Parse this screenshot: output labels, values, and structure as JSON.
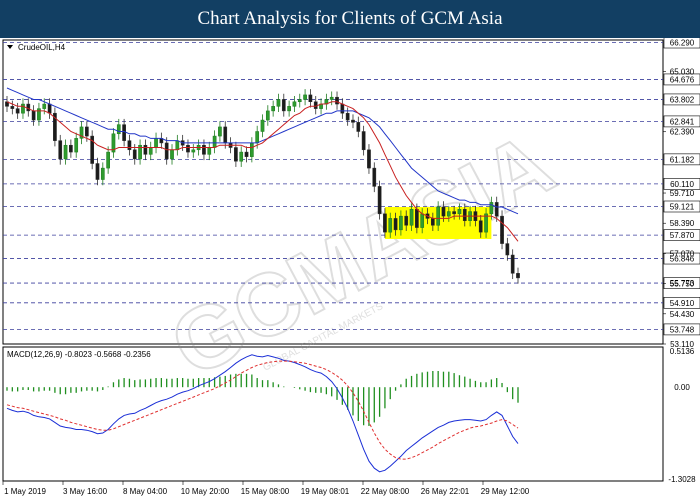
{
  "banner": {
    "title": "Chart Analysis for Clients of GCM Asia"
  },
  "watermark": {
    "text": "GCMASIA",
    "subtext": "GLOBAL CAPITAL MARKETS"
  },
  "chart_data": {
    "type": "candlestick",
    "symbol_label": "CrudeOIL,H4",
    "price_axis": {
      "range": [
        53.11,
        66.4
      ],
      "tick_labels": [
        "65.030",
        "62.390",
        "59.710",
        "58.390",
        "57.070",
        "55.750",
        "54.430",
        "53.110"
      ],
      "key_levels": [
        {
          "value": "66.290",
          "box": true
        },
        {
          "value": "64.676",
          "box": true
        },
        {
          "value": "63.802",
          "box": true
        },
        {
          "value": "62.841",
          "box": true
        },
        {
          "value": "61.182",
          "box": true
        },
        {
          "value": "60.110",
          "box": true
        },
        {
          "value": "59.121",
          "box": true
        },
        {
          "value": "57.870",
          "box": true
        },
        {
          "value": "56.846",
          "box": true
        },
        {
          "value": "55.773",
          "box": true,
          "highlight": true
        },
        {
          "value": "54.910",
          "box": true
        },
        {
          "value": "53.748",
          "box": true
        }
      ]
    },
    "time_axis": {
      "labels": [
        "1 May 2019",
        "3 May 16:00",
        "8 May 04:00",
        "10 May 20:00",
        "15 May 08:00",
        "19 May 08:01",
        "22 May 08:00",
        "26 May 22:01",
        "29 May 12:00"
      ]
    },
    "consolidation_zone": {
      "from_index": 71,
      "to_index": 91,
      "upper": 59.1,
      "lower": 57.7,
      "color": "#ffff00"
    },
    "close": [
      63.5,
      63.4,
      63.2,
      63.6,
      63.3,
      62.9,
      63.4,
      63.6,
      63.2,
      62.0,
      61.2,
      61.8,
      61.5,
      62.1,
      62.6,
      62.2,
      61.0,
      60.3,
      60.8,
      61.5,
      62.3,
      62.7,
      62.0,
      61.6,
      61.2,
      61.8,
      61.4,
      61.7,
      62.1,
      61.9,
      61.2,
      61.6,
      62.0,
      61.8,
      61.5,
      61.6,
      61.8,
      61.4,
      61.7,
      62.2,
      62.6,
      61.9,
      61.7,
      61.1,
      61.5,
      61.3,
      61.9,
      62.4,
      62.9,
      63.3,
      63.5,
      63.8,
      63.3,
      63.5,
      63.7,
      63.8,
      64.0,
      63.7,
      63.4,
      63.6,
      63.8,
      63.9,
      63.6,
      63.2,
      62.9,
      62.8,
      62.4,
      61.6,
      60.8,
      60.0,
      58.8,
      58.0,
      58.6,
      58.1,
      58.7,
      58.3,
      59.0,
      58.2,
      58.8,
      58.6,
      58.3,
      59.1,
      58.7,
      58.9,
      58.8,
      59.0,
      58.5,
      58.9,
      58.5,
      58.0,
      58.8,
      59.3,
      58.7,
      57.5,
      57.0,
      56.2,
      56.0
    ],
    "sma_fast": [
      63.7,
      63.6,
      63.5,
      63.5,
      63.4,
      63.3,
      63.3,
      63.3,
      63.2,
      63.0,
      62.8,
      62.6,
      62.4,
      62.3,
      62.2,
      62.1,
      62.0,
      61.8,
      61.7,
      61.6,
      61.6,
      61.7,
      61.7,
      61.7,
      61.7,
      61.7,
      61.7,
      61.7,
      61.7,
      61.7,
      61.6,
      61.6,
      61.6,
      61.7,
      61.7,
      61.7,
      61.7,
      61.7,
      61.7,
      61.7,
      61.8,
      61.8,
      61.8,
      61.8,
      61.8,
      61.7,
      61.7,
      61.8,
      61.9,
      62.1,
      62.3,
      62.5,
      62.7,
      62.9,
      63.1,
      63.2,
      63.4,
      63.5,
      63.5,
      63.6,
      63.6,
      63.7,
      63.7,
      63.6,
      63.5,
      63.4,
      63.2,
      63.0,
      62.7,
      62.3,
      61.9,
      61.4,
      60.9,
      60.4,
      60.0,
      59.6,
      59.3,
      59.0,
      58.8,
      58.7,
      58.6,
      58.6,
      58.6,
      58.6,
      58.7,
      58.7,
      58.7,
      58.7,
      58.7,
      58.7,
      58.7,
      58.7,
      58.6,
      58.4,
      58.2,
      57.9,
      57.6
    ],
    "sma_slow": [
      64.3,
      64.2,
      64.1,
      64.0,
      63.9,
      63.8,
      63.8,
      63.7,
      63.6,
      63.5,
      63.4,
      63.3,
      63.2,
      63.1,
      63.0,
      62.9,
      62.8,
      62.7,
      62.6,
      62.5,
      62.5,
      62.4,
      62.4,
      62.3,
      62.3,
      62.2,
      62.2,
      62.1,
      62.1,
      62.1,
      62.0,
      62.0,
      62.0,
      61.9,
      61.9,
      61.9,
      61.9,
      61.9,
      61.9,
      61.9,
      61.9,
      61.9,
      61.9,
      61.9,
      61.9,
      61.9,
      61.9,
      61.9,
      62.0,
      62.1,
      62.2,
      62.3,
      62.4,
      62.5,
      62.6,
      62.7,
      62.8,
      62.9,
      63.0,
      63.1,
      63.2,
      63.2,
      63.3,
      63.3,
      63.3,
      63.3,
      63.2,
      63.1,
      63.0,
      62.8,
      62.6,
      62.3,
      62.0,
      61.7,
      61.4,
      61.1,
      60.8,
      60.6,
      60.4,
      60.2,
      60.0,
      59.8,
      59.7,
      59.6,
      59.5,
      59.4,
      59.4,
      59.3,
      59.3,
      59.2,
      59.2,
      59.2,
      59.1,
      59.1,
      59.0,
      58.9,
      58.8
    ],
    "macd": {
      "label": "MACD(12,26,9) -0.8023 -0.5668 -0.2356",
      "range": [
        -1.3028,
        0.5136
      ],
      "tick_labels": [
        "0.5136",
        "0.00",
        "-1.3028"
      ],
      "macd_line": [
        -0.3,
        -0.33,
        -0.35,
        -0.34,
        -0.36,
        -0.4,
        -0.42,
        -0.43,
        -0.45,
        -0.5,
        -0.55,
        -0.57,
        -0.58,
        -0.6,
        -0.6,
        -0.61,
        -0.63,
        -0.66,
        -0.65,
        -0.6,
        -0.52,
        -0.45,
        -0.4,
        -0.38,
        -0.37,
        -0.33,
        -0.3,
        -0.26,
        -0.22,
        -0.19,
        -0.17,
        -0.14,
        -0.1,
        -0.07,
        -0.05,
        -0.02,
        0.02,
        0.05,
        0.08,
        0.12,
        0.17,
        0.22,
        0.28,
        0.34,
        0.39,
        0.43,
        0.46,
        0.44,
        0.43,
        0.45,
        0.43,
        0.41,
        0.38,
        0.37,
        0.35,
        0.32,
        0.29,
        0.25,
        0.22,
        0.2,
        0.15,
        0.08,
        -0.02,
        -0.15,
        -0.3,
        -0.48,
        -0.68,
        -0.88,
        -1.05,
        -1.15,
        -1.2,
        -1.18,
        -1.12,
        -1.05,
        -0.98,
        -0.9,
        -0.84,
        -0.78,
        -0.72,
        -0.67,
        -0.62,
        -0.57,
        -0.54,
        -0.5,
        -0.48,
        -0.47,
        -0.46,
        -0.46,
        -0.47,
        -0.48,
        -0.46,
        -0.4,
        -0.35,
        -0.4,
        -0.55,
        -0.7,
        -0.8
      ],
      "signal_line": [
        -0.25,
        -0.27,
        -0.29,
        -0.3,
        -0.32,
        -0.34,
        -0.36,
        -0.38,
        -0.4,
        -0.42,
        -0.45,
        -0.47,
        -0.5,
        -0.52,
        -0.54,
        -0.56,
        -0.58,
        -0.6,
        -0.61,
        -0.61,
        -0.59,
        -0.56,
        -0.53,
        -0.5,
        -0.47,
        -0.44,
        -0.41,
        -0.38,
        -0.35,
        -0.32,
        -0.29,
        -0.26,
        -0.23,
        -0.2,
        -0.17,
        -0.14,
        -0.11,
        -0.08,
        -0.05,
        -0.02,
        0.02,
        0.06,
        0.1,
        0.15,
        0.2,
        0.24,
        0.28,
        0.31,
        0.33,
        0.35,
        0.36,
        0.37,
        0.37,
        0.37,
        0.36,
        0.35,
        0.34,
        0.32,
        0.3,
        0.28,
        0.25,
        0.21,
        0.16,
        0.1,
        0.02,
        -0.08,
        -0.2,
        -0.34,
        -0.5,
        -0.65,
        -0.78,
        -0.88,
        -0.95,
        -1.0,
        -1.02,
        -1.02,
        -1.0,
        -0.97,
        -0.93,
        -0.89,
        -0.85,
        -0.8,
        -0.76,
        -0.72,
        -0.68,
        -0.64,
        -0.61,
        -0.58,
        -0.56,
        -0.55,
        -0.53,
        -0.51,
        -0.48,
        -0.46,
        -0.48,
        -0.53,
        -0.58
      ]
    }
  }
}
